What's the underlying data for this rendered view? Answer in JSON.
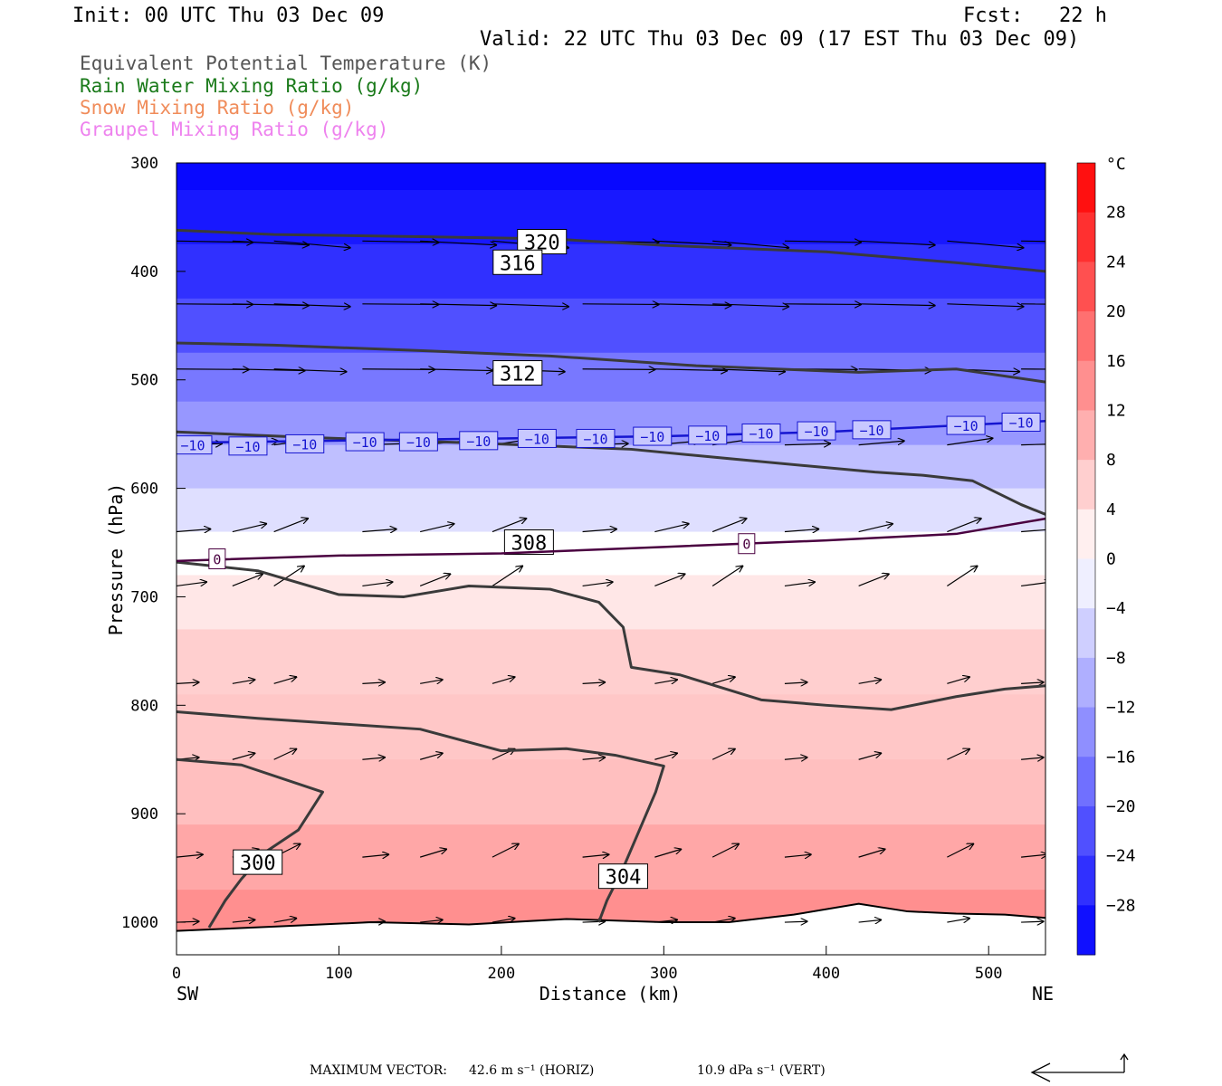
{
  "header": {
    "init": "Init: 00 UTC Thu 03 Dec 09",
    "fcst": "Fcst:   22 h",
    "valid": "Valid: 22 UTC Thu 03 Dec 09 (17 EST Thu 03 Dec 09)"
  },
  "legend": [
    {
      "label": "Equivalent Potential Temperature (K)",
      "color": "#555555"
    },
    {
      "label": "Rain Water Mixing Ratio (g/kg)",
      "color": "#1a7a1a"
    },
    {
      "label": "Snow Mixing Ratio (g/kg)",
      "color": "#f08c5a"
    },
    {
      "label": "Graupel Mixing Ratio (g/kg)",
      "color": "#ee82ee"
    }
  ],
  "chart_data": {
    "type": "heatmap",
    "xlabel": "Distance (km)",
    "ylabel": "Pressure (hPa)",
    "xlim": [
      0,
      535
    ],
    "ylim": [
      1030,
      300
    ],
    "y_scale": "linear",
    "x_ticks": [
      "0",
      "100",
      "200",
      "300",
      "400",
      "500"
    ],
    "y_ticks": [
      "300",
      "400",
      "500",
      "600",
      "700",
      "800",
      "900",
      "1000"
    ],
    "x_left_label": "SW",
    "x_right_label": "NE",
    "colorbar": {
      "unit": "°C",
      "min": -32,
      "max": 32,
      "step": 4,
      "tick_labels": [
        "28",
        "24",
        "20",
        "16",
        "12",
        "8",
        "4",
        "0",
        "−4",
        "−8",
        "−12",
        "−16",
        "−20",
        "−24",
        "−28"
      ]
    },
    "temperature_bands": [
      {
        "p": 300,
        "t": -31
      },
      {
        "p": 350,
        "t": -29
      },
      {
        "p": 400,
        "t": -26
      },
      {
        "p": 450,
        "t": -22
      },
      {
        "p": 500,
        "t": -17
      },
      {
        "p": 540,
        "t": -13
      },
      {
        "p": 580,
        "t": -8
      },
      {
        "p": 620,
        "t": -4
      },
      {
        "p": 660,
        "t": 0
      },
      {
        "p": 700,
        "t": 3
      },
      {
        "p": 760,
        "t": 6
      },
      {
        "p": 820,
        "t": 7
      },
      {
        "p": 880,
        "t": 8
      },
      {
        "p": 940,
        "t": 11
      },
      {
        "p": 1000,
        "t": 14
      }
    ],
    "theta_e_contours": [
      {
        "label": "320",
        "label_at": [
          225,
          373
        ],
        "points": [
          [
            0,
            362
          ],
          [
            60,
            366
          ],
          [
            150,
            368
          ],
          [
            230,
            370
          ],
          [
            300,
            376
          ],
          [
            400,
            382
          ],
          [
            480,
            392
          ],
          [
            535,
            400
          ]
        ]
      },
      {
        "label": "316",
        "label_at": [
          210,
          392
        ],
        "points": [
          [
            0,
            466
          ],
          [
            60,
            468
          ],
          [
            150,
            473
          ],
          [
            230,
            478
          ],
          [
            320,
            487
          ],
          [
            420,
            493
          ],
          [
            480,
            490
          ],
          [
            535,
            502
          ]
        ]
      },
      {
        "label": "312",
        "label_at": [
          210,
          494
        ],
        "points": [
          [
            0,
            548
          ],
          [
            80,
            553
          ],
          [
            180,
            558
          ],
          [
            280,
            564
          ],
          [
            350,
            574
          ],
          [
            430,
            585
          ],
          [
            460,
            588
          ],
          [
            490,
            593
          ],
          [
            520,
            615
          ],
          [
            535,
            624
          ]
        ]
      },
      {
        "label": "308",
        "label_at": [
          217,
          650
        ],
        "points": [
          [
            0,
            668
          ],
          [
            50,
            676
          ],
          [
            100,
            698
          ],
          [
            140,
            700
          ],
          [
            180,
            690
          ],
          [
            230,
            693
          ],
          [
            260,
            705
          ],
          [
            275,
            728
          ],
          [
            280,
            765
          ],
          [
            310,
            772
          ],
          [
            360,
            795
          ],
          [
            400,
            800
          ],
          [
            440,
            804
          ],
          [
            480,
            792
          ],
          [
            510,
            785
          ],
          [
            535,
            782
          ]
        ]
      },
      {
        "label": "304",
        "label_at": [
          275,
          958
        ],
        "points": [
          [
            0,
            806
          ],
          [
            50,
            812
          ],
          [
            100,
            817
          ],
          [
            150,
            822
          ],
          [
            200,
            842
          ],
          [
            240,
            840
          ],
          [
            270,
            846
          ],
          [
            300,
            856
          ],
          [
            295,
            880
          ],
          [
            285,
            915
          ],
          [
            275,
            950
          ],
          [
            265,
            980
          ],
          [
            260,
            1000
          ]
        ]
      },
      {
        "label": "300",
        "label_at": [
          50,
          945
        ],
        "points": [
          [
            0,
            850
          ],
          [
            40,
            855
          ],
          [
            90,
            880
          ],
          [
            75,
            915
          ],
          [
            55,
            935
          ],
          [
            40,
            960
          ],
          [
            30,
            980
          ],
          [
            20,
            1005
          ]
        ]
      }
    ],
    "isotherm_minus10": {
      "label": "−10",
      "points": [
        [
          0,
          558
        ],
        [
          100,
          556
        ],
        [
          200,
          554
        ],
        [
          300,
          552
        ],
        [
          400,
          548
        ],
        [
          535,
          538
        ]
      ],
      "label_positions": [
        [
          10,
          560
        ],
        [
          44,
          561
        ],
        [
          79,
          559
        ],
        [
          116,
          557
        ],
        [
          149,
          557
        ],
        [
          186,
          556
        ],
        [
          222,
          554
        ],
        [
          258,
          554
        ],
        [
          293,
          552
        ],
        [
          327,
          551
        ],
        [
          360,
          549
        ],
        [
          394,
          547
        ],
        [
          428,
          546
        ],
        [
          486,
          542
        ],
        [
          520,
          539
        ]
      ]
    },
    "isotherm_zero": {
      "label": "0",
      "points": [
        [
          0,
          667
        ],
        [
          100,
          662
        ],
        [
          200,
          660
        ],
        [
          300,
          654
        ],
        [
          400,
          648
        ],
        [
          480,
          642
        ],
        [
          535,
          628
        ]
      ],
      "label_positions": [
        [
          25,
          665
        ],
        [
          351,
          651
        ]
      ]
    },
    "surface": [
      [
        0,
        1008
      ],
      [
        60,
        1004
      ],
      [
        120,
        1000
      ],
      [
        180,
        1002
      ],
      [
        240,
        997
      ],
      [
        300,
        1000
      ],
      [
        340,
        1000
      ],
      [
        380,
        993
      ],
      [
        420,
        983
      ],
      [
        450,
        990
      ],
      [
        480,
        992
      ],
      [
        510,
        993
      ],
      [
        535,
        996
      ]
    ],
    "wind_vectors": [
      {
        "p": 372,
        "u": 1,
        "w": 0.05
      },
      {
        "p": 430,
        "u": 1,
        "w": 0.02
      },
      {
        "p": 490,
        "u": 0.95,
        "w": 0.02
      },
      {
        "p": 560,
        "u": 0.6,
        "w": -0.05
      },
      {
        "p": 640,
        "u": 0.45,
        "w": -0.1
      },
      {
        "p": 690,
        "u": 0.4,
        "w": -0.15
      },
      {
        "p": 780,
        "u": 0.3,
        "w": -0.05
      },
      {
        "p": 850,
        "u": 0.3,
        "w": -0.08
      },
      {
        "p": 940,
        "u": 0.35,
        "w": -0.1
      },
      {
        "p": 1000,
        "u": 0.3,
        "w": -0.03
      }
    ]
  },
  "footer": {
    "max_vector_label": "MAXIMUM VECTOR:",
    "horiz": "42.6 m s⁻¹ (HORIZ)",
    "vert": "10.9 dPa s⁻¹ (VERT)"
  }
}
